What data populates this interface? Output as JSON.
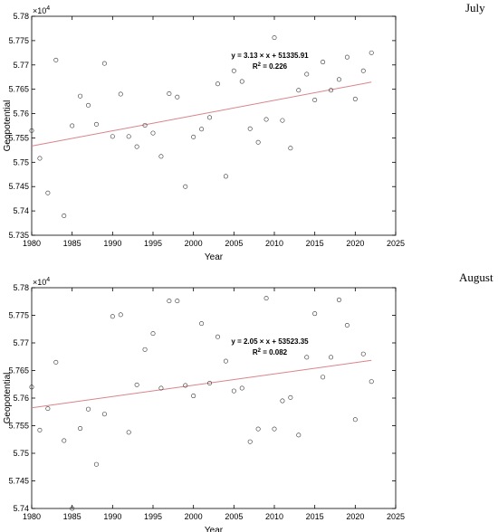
{
  "chart_data": [
    {
      "type": "scatter",
      "panel_label": "July",
      "xlabel": "Year",
      "ylabel": "Geopotential",
      "y_exponent": "10",
      "y_exponent_power": "4",
      "xlim": [
        1980,
        2025
      ],
      "ylim": [
        5.735,
        5.78
      ],
      "x_ticks": [
        "1980",
        "1985",
        "1990",
        "1995",
        "2000",
        "2005",
        "2010",
        "2015",
        "2020",
        "2025"
      ],
      "y_ticks": [
        "5.735",
        "5.74",
        "5.745",
        "5.75",
        "5.755",
        "5.76",
        "5.765",
        "5.77",
        "5.775",
        "5.78"
      ],
      "grid": false,
      "equation": "y = 3.13 × x + 51335.91",
      "r2_prefix": "R",
      "r2_power": "2",
      "r2_value": " = 0.226",
      "trend": {
        "slope": 3.13,
        "intercept": 51335.91
      },
      "trend_color": "#d9848a",
      "x": [
        1980,
        1981,
        1982,
        1983,
        1984,
        1985,
        1986,
        1987,
        1988,
        1989,
        1990,
        1991,
        1992,
        1993,
        1994,
        1995,
        1996,
        1997,
        1998,
        1999,
        2000,
        2001,
        2002,
        2003,
        2004,
        2005,
        2006,
        2007,
        2008,
        2009,
        2010,
        2011,
        2012,
        2013,
        2014,
        2015,
        2016,
        2017,
        2018,
        2019,
        2020,
        2021,
        2022
      ],
      "y": [
        5.7565,
        5.7508,
        5.7437,
        5.771,
        5.739,
        5.7575,
        5.7636,
        5.7617,
        5.7578,
        5.7703,
        5.7553,
        5.764,
        5.7553,
        5.7532,
        5.7576,
        5.756,
        5.7512,
        5.7641,
        5.7634,
        5.745,
        5.7552,
        5.7568,
        5.7592,
        5.7661,
        5.7471,
        5.7688,
        5.7666,
        5.7569,
        5.7541,
        5.7588,
        5.7756,
        5.7586,
        5.7529,
        5.7648,
        5.7681,
        5.7628,
        5.7706,
        5.7648,
        5.767,
        5.7716,
        5.763,
        5.7688,
        5.7725
      ]
    },
    {
      "type": "scatter",
      "panel_label": "August",
      "xlabel": "Year",
      "ylabel": "Geopotential",
      "y_exponent": "10",
      "y_exponent_power": "4",
      "xlim": [
        1980,
        2025
      ],
      "ylim": [
        5.74,
        5.78
      ],
      "x_ticks": [
        "1980",
        "1985",
        "1990",
        "1995",
        "2000",
        "2005",
        "2010",
        "2015",
        "2020",
        "2025"
      ],
      "y_ticks": [
        "5.74",
        "5.745",
        "5.75",
        "5.755",
        "5.76",
        "5.765",
        "5.77",
        "5.775",
        "5.78"
      ],
      "grid": false,
      "equation": "y = 2.05 × x + 53523.35",
      "r2_prefix": "R",
      "r2_power": "2",
      "r2_value": " = 0.082",
      "trend": {
        "slope": 2.05,
        "intercept": 53523.35
      },
      "trend_color": "#d9848a",
      "x": [
        1980,
        1981,
        1982,
        1983,
        1984,
        1985,
        1986,
        1987,
        1988,
        1989,
        1990,
        1991,
        1992,
        1993,
        1994,
        1995,
        1996,
        1997,
        1998,
        1999,
        2000,
        2001,
        2002,
        2003,
        2004,
        2005,
        2006,
        2007,
        2008,
        2009,
        2010,
        2011,
        2012,
        2013,
        2014,
        2015,
        2016,
        2017,
        2018,
        2019,
        2020,
        2021,
        2022
      ],
      "y": [
        5.762,
        5.7542,
        5.7581,
        5.7665,
        5.7523,
        5.74,
        5.7545,
        5.758,
        5.748,
        5.7571,
        5.7748,
        5.7751,
        5.7538,
        5.7624,
        5.7688,
        5.7717,
        5.7618,
        5.7776,
        5.7776,
        5.7623,
        5.7604,
        5.7735,
        5.7627,
        5.7711,
        5.7667,
        5.7613,
        5.7618,
        5.7521,
        5.7544,
        5.7781,
        5.7544,
        5.7595,
        5.7601,
        5.7533,
        5.7674,
        5.7753,
        5.7638,
        5.7674,
        5.7778,
        5.7732,
        5.7561,
        5.768,
        5.763
      ]
    }
  ]
}
